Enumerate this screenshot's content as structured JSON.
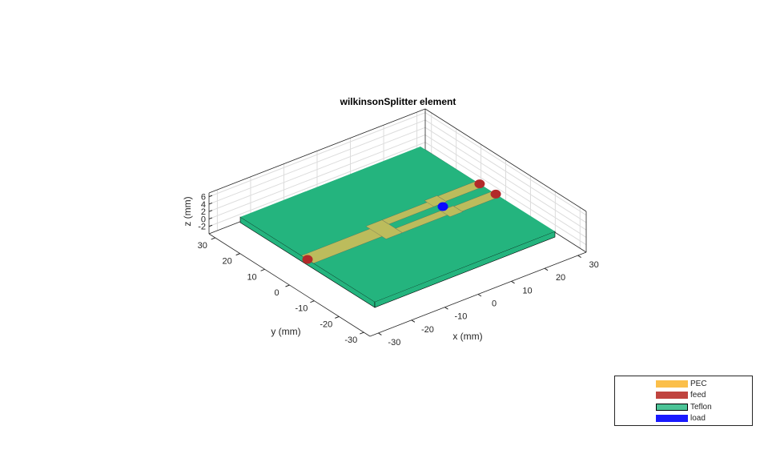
{
  "title": "wilkinsonSplitter element",
  "axes": {
    "xlabel": "x (mm)",
    "ylabel": "y (mm)",
    "zlabel": "z (mm)",
    "xticks": [
      -30,
      -20,
      -10,
      0,
      10,
      20,
      30
    ],
    "yticks": [
      -30,
      -20,
      -10,
      0,
      10,
      20,
      30
    ],
    "zticks": [
      -2,
      0,
      2,
      4,
      6
    ],
    "xlim": [
      -32.5,
      32.5
    ],
    "ylim": [
      -32.5,
      32.5
    ],
    "zlim": [
      -4,
      7
    ],
    "grid": true
  },
  "colors": {
    "board": "#24b47e",
    "trace": "#bcbc5c",
    "feed": "#b22a2a",
    "load": "#0a0aff"
  },
  "legend": {
    "placement": "bottom-right",
    "items": [
      {
        "label": "PEC",
        "color": "#fbbf4a"
      },
      {
        "label": "feed",
        "color": "#c0443f"
      },
      {
        "label": "Teflon",
        "color": "#4cc497"
      },
      {
        "label": "load",
        "color": "#1a1aff"
      }
    ]
  }
}
